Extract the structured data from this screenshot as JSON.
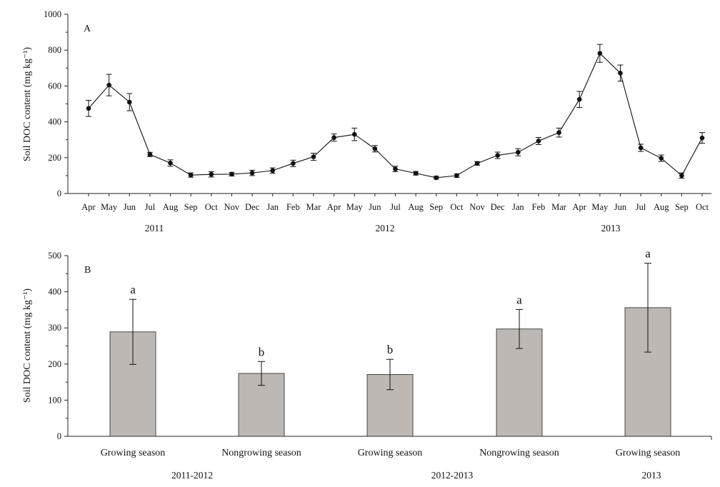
{
  "chart_data": [
    {
      "type": "line",
      "panel_label": "A",
      "ylabel": "Soil DOC content (mg kg⁻¹)",
      "ylim": [
        0,
        1000
      ],
      "yticks": [
        0,
        200,
        400,
        600,
        800,
        1000
      ],
      "x": [
        "Apr",
        "May",
        "Jun",
        "Jul",
        "Aug",
        "Sep",
        "Oct",
        "Nov",
        "Dec",
        "Jan",
        "Feb",
        "Mar",
        "Apr",
        "May",
        "Jun",
        "Jul",
        "Aug",
        "Sep",
        "Oct",
        "Nov",
        "Dec",
        "Jan",
        "Feb",
        "Mar",
        "Apr",
        "May",
        "Jun",
        "Jul",
        "Aug",
        "Sep",
        "Oct"
      ],
      "year_labels": [
        "2011",
        "2012",
        "2013"
      ],
      "series": [
        {
          "values": [
            475,
            605,
            510,
            218,
            170,
            103,
            107,
            108,
            115,
            128,
            168,
            205,
            312,
            330,
            250,
            137,
            113,
            88,
            100,
            168,
            213,
            230,
            293,
            340,
            525,
            782,
            672,
            255,
            197,
            100,
            310
          ],
          "error": [
            45,
            60,
            48,
            12,
            18,
            12,
            15,
            10,
            15,
            15,
            18,
            20,
            20,
            35,
            18,
            15,
            10,
            8,
            10,
            10,
            18,
            20,
            20,
            25,
            45,
            50,
            45,
            20,
            18,
            15,
            30
          ]
        }
      ],
      "grid": false
    },
    {
      "type": "bar",
      "panel_label": "B",
      "ylabel": "Soil DOC content (mg kg⁻¹)",
      "ylim": [
        0,
        500
      ],
      "yticks": [
        0,
        100,
        200,
        300,
        400,
        500
      ],
      "categories": [
        "Growing season",
        "Nongrowing season",
        "Growing season",
        "Nongrowing season",
        "Growing season"
      ],
      "groups": [
        "2011-2012",
        "2012-2013",
        "2013"
      ],
      "values": [
        289,
        174,
        171,
        297,
        356
      ],
      "error": [
        90,
        33,
        42,
        54,
        123
      ],
      "letters": [
        "a",
        "b",
        "b",
        "a",
        "a"
      ],
      "grid": false
    }
  ]
}
